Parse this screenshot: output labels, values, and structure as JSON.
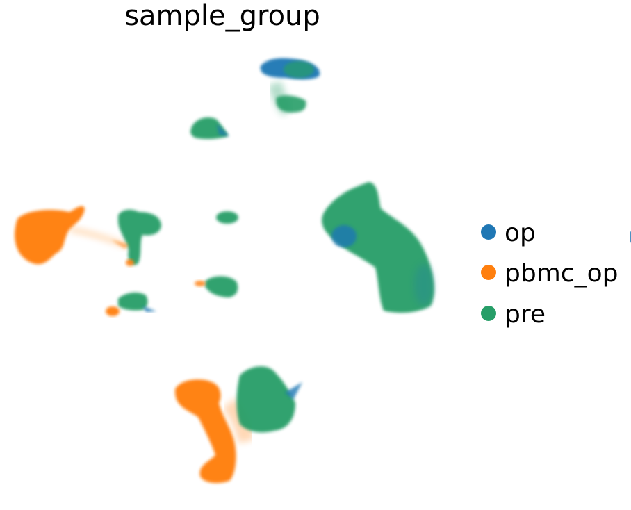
{
  "chart_data": {
    "type": "scatter",
    "title": "sample_group",
    "xlabel": "",
    "ylabel": "",
    "grid": false,
    "axes_visible": false,
    "legend_position": "right",
    "series": [
      {
        "name": "op",
        "color": "#1f77b4"
      },
      {
        "name": "pbmc_op",
        "color": "#ff7f0e"
      },
      {
        "name": "pre",
        "color": "#279e68"
      }
    ]
  }
}
